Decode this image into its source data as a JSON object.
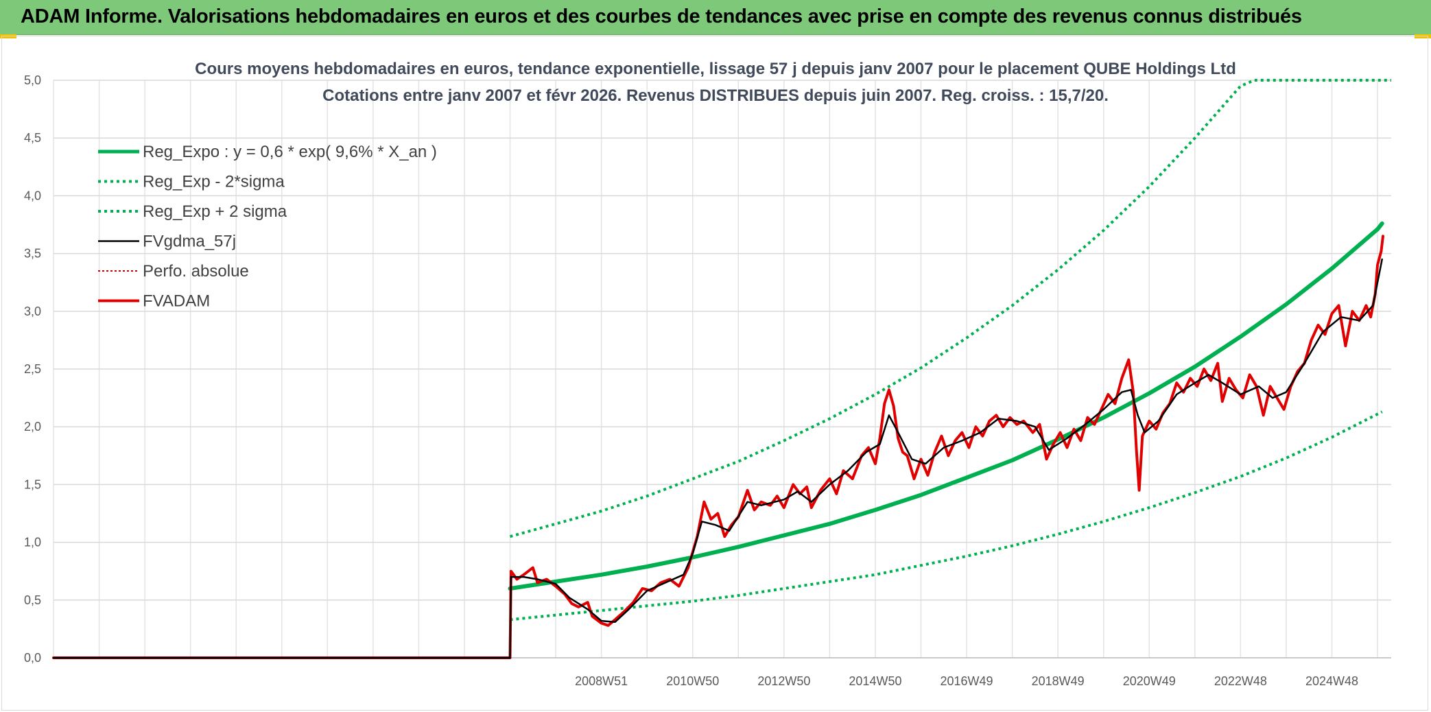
{
  "banner": {
    "title": "ADAM Informe. Valorisations hebdomadaires en euros et des courbes de tendances avec prise en compte des revenus connus distribués"
  },
  "chart_data": {
    "type": "line",
    "title_lines": [
      "Cours moyens hebdomadaires en euros, tendance exponentielle, lissage 57 j depuis janv 2007 pour le placement QUBE Holdings Ltd",
      "Cotations entre janv 2007 et févr 2026. Revenus DISTRIBUES depuis juin 2007. Reg. croiss. : 15,7/20."
    ],
    "ylim": [
      0,
      5
    ],
    "yticks": [
      "0,0",
      "0,5",
      "1,0",
      "1,5",
      "2,0",
      "2,5",
      "3,0",
      "3,5",
      "4,0",
      "4,5",
      "5,0"
    ],
    "xlim": [
      1997.0,
      2026.3
    ],
    "xticks": [
      {
        "label": "2008W51",
        "x": 2009.0
      },
      {
        "label": "2010W50",
        "x": 2011.0
      },
      {
        "label": "2012W50",
        "x": 2013.0
      },
      {
        "label": "2014W50",
        "x": 2015.0
      },
      {
        "label": "2016W49",
        "x": 2017.0
      },
      {
        "label": "2018W49",
        "x": 2019.0
      },
      {
        "label": "2020W49",
        "x": 2021.0
      },
      {
        "label": "2022W48",
        "x": 2023.0
      },
      {
        "label": "2024W48",
        "x": 2025.0
      }
    ],
    "grid": true,
    "legend_position": "top-left",
    "series": [
      {
        "name": "Reg_Expo : y = 0,6 * exp( 9,6% *  X_an )",
        "color": "#00b050",
        "style": "solid",
        "width": 6,
        "points": [
          [
            2007.0,
            0.6
          ],
          [
            2008.0,
            0.66
          ],
          [
            2009.0,
            0.72
          ],
          [
            2010.0,
            0.79
          ],
          [
            2011.0,
            0.87
          ],
          [
            2012.0,
            0.96
          ],
          [
            2013.0,
            1.06
          ],
          [
            2014.0,
            1.16
          ],
          [
            2015.0,
            1.28
          ],
          [
            2016.0,
            1.41
          ],
          [
            2017.0,
            1.56
          ],
          [
            2018.0,
            1.71
          ],
          [
            2019.0,
            1.89
          ],
          [
            2020.0,
            2.08
          ],
          [
            2021.0,
            2.29
          ],
          [
            2022.0,
            2.52
          ],
          [
            2023.0,
            2.78
          ],
          [
            2024.0,
            3.06
          ],
          [
            2025.0,
            3.37
          ],
          [
            2026.0,
            3.71
          ],
          [
            2026.1,
            3.76
          ]
        ]
      },
      {
        "name": "Reg_Exp - 2*sigma",
        "color": "#00b050",
        "style": "dotted",
        "width": 4,
        "points": [
          [
            2007.0,
            0.33
          ],
          [
            2008.0,
            0.37
          ],
          [
            2009.0,
            0.41
          ],
          [
            2010.0,
            0.45
          ],
          [
            2011.0,
            0.49
          ],
          [
            2012.0,
            0.54
          ],
          [
            2013.0,
            0.6
          ],
          [
            2014.0,
            0.66
          ],
          [
            2015.0,
            0.72
          ],
          [
            2016.0,
            0.8
          ],
          [
            2017.0,
            0.88
          ],
          [
            2018.0,
            0.97
          ],
          [
            2019.0,
            1.07
          ],
          [
            2020.0,
            1.18
          ],
          [
            2021.0,
            1.3
          ],
          [
            2022.0,
            1.43
          ],
          [
            2023.0,
            1.57
          ],
          [
            2024.0,
            1.73
          ],
          [
            2025.0,
            1.91
          ],
          [
            2026.1,
            2.13
          ]
        ]
      },
      {
        "name": "Reg_Exp + 2 sigma",
        "color": "#00b050",
        "style": "dotted",
        "width": 4,
        "points": [
          [
            2007.0,
            1.05
          ],
          [
            2008.0,
            1.16
          ],
          [
            2009.0,
            1.27
          ],
          [
            2010.0,
            1.4
          ],
          [
            2011.0,
            1.55
          ],
          [
            2012.0,
            1.7
          ],
          [
            2013.0,
            1.88
          ],
          [
            2014.0,
            2.07
          ],
          [
            2015.0,
            2.28
          ],
          [
            2016.0,
            2.51
          ],
          [
            2017.0,
            2.77
          ],
          [
            2018.0,
            3.05
          ],
          [
            2019.0,
            3.36
          ],
          [
            2020.0,
            3.7
          ],
          [
            2021.0,
            4.08
          ],
          [
            2022.0,
            4.5
          ],
          [
            2023.0,
            4.95
          ],
          [
            2023.3,
            5.0
          ],
          [
            2026.3,
            5.0
          ]
        ]
      },
      {
        "name": "FVgdma_57j",
        "color": "#000000",
        "style": "solid",
        "width": 2.5,
        "points": [
          [
            1997.0,
            0.0
          ],
          [
            2007.0,
            0.0
          ],
          [
            2007.02,
            0.7
          ],
          [
            2007.3,
            0.7
          ],
          [
            2007.6,
            0.68
          ],
          [
            2008.0,
            0.64
          ],
          [
            2008.3,
            0.52
          ],
          [
            2008.7,
            0.42
          ],
          [
            2009.0,
            0.32
          ],
          [
            2009.3,
            0.31
          ],
          [
            2009.6,
            0.42
          ],
          [
            2010.0,
            0.58
          ],
          [
            2010.4,
            0.65
          ],
          [
            2010.8,
            0.72
          ],
          [
            2011.0,
            0.9
          ],
          [
            2011.2,
            1.18
          ],
          [
            2011.5,
            1.15
          ],
          [
            2011.8,
            1.1
          ],
          [
            2012.2,
            1.35
          ],
          [
            2012.5,
            1.32
          ],
          [
            2013.0,
            1.37
          ],
          [
            2013.3,
            1.44
          ],
          [
            2013.6,
            1.35
          ],
          [
            2014.0,
            1.5
          ],
          [
            2014.4,
            1.62
          ],
          [
            2014.8,
            1.78
          ],
          [
            2015.1,
            1.85
          ],
          [
            2015.3,
            2.1
          ],
          [
            2015.5,
            1.95
          ],
          [
            2015.8,
            1.72
          ],
          [
            2016.1,
            1.68
          ],
          [
            2016.5,
            1.82
          ],
          [
            2016.9,
            1.88
          ],
          [
            2017.3,
            1.95
          ],
          [
            2017.7,
            2.07
          ],
          [
            2018.1,
            2.05
          ],
          [
            2018.5,
            2.0
          ],
          [
            2018.8,
            1.8
          ],
          [
            2019.2,
            1.9
          ],
          [
            2019.6,
            2.02
          ],
          [
            2020.0,
            2.15
          ],
          [
            2020.4,
            2.3
          ],
          [
            2020.6,
            2.32
          ],
          [
            2020.75,
            2.1
          ],
          [
            2020.9,
            1.95
          ],
          [
            2021.2,
            2.05
          ],
          [
            2021.6,
            2.28
          ],
          [
            2022.0,
            2.38
          ],
          [
            2022.3,
            2.45
          ],
          [
            2022.6,
            2.38
          ],
          [
            2023.0,
            2.28
          ],
          [
            2023.4,
            2.35
          ],
          [
            2023.7,
            2.25
          ],
          [
            2024.0,
            2.3
          ],
          [
            2024.4,
            2.55
          ],
          [
            2024.8,
            2.82
          ],
          [
            2025.2,
            2.95
          ],
          [
            2025.6,
            2.92
          ],
          [
            2025.9,
            3.05
          ],
          [
            2026.1,
            3.45
          ]
        ]
      },
      {
        "name": "Perfo. absolue",
        "color": "#c00000",
        "style": "dotted",
        "width": 2,
        "points": [
          [
            1997.0,
            0.0
          ],
          [
            2007.0,
            0.0
          ]
        ]
      },
      {
        "name": "FVADAM",
        "color": "#e00000",
        "style": "solid",
        "width": 4,
        "points": [
          [
            1997.0,
            0.0
          ],
          [
            2007.0,
            0.0
          ],
          [
            2007.02,
            0.75
          ],
          [
            2007.15,
            0.68
          ],
          [
            2007.3,
            0.72
          ],
          [
            2007.5,
            0.78
          ],
          [
            2007.6,
            0.65
          ],
          [
            2007.8,
            0.68
          ],
          [
            2008.0,
            0.62
          ],
          [
            2008.2,
            0.55
          ],
          [
            2008.35,
            0.47
          ],
          [
            2008.5,
            0.44
          ],
          [
            2008.7,
            0.48
          ],
          [
            2008.8,
            0.36
          ],
          [
            2009.0,
            0.3
          ],
          [
            2009.15,
            0.28
          ],
          [
            2009.3,
            0.33
          ],
          [
            2009.5,
            0.4
          ],
          [
            2009.7,
            0.48
          ],
          [
            2009.9,
            0.6
          ],
          [
            2010.1,
            0.58
          ],
          [
            2010.3,
            0.65
          ],
          [
            2010.5,
            0.68
          ],
          [
            2010.7,
            0.62
          ],
          [
            2010.9,
            0.78
          ],
          [
            2011.1,
            1.05
          ],
          [
            2011.25,
            1.35
          ],
          [
            2011.4,
            1.2
          ],
          [
            2011.55,
            1.25
          ],
          [
            2011.7,
            1.05
          ],
          [
            2011.85,
            1.15
          ],
          [
            2012.0,
            1.22
          ],
          [
            2012.2,
            1.45
          ],
          [
            2012.35,
            1.28
          ],
          [
            2012.5,
            1.35
          ],
          [
            2012.7,
            1.32
          ],
          [
            2012.85,
            1.4
          ],
          [
            2013.0,
            1.3
          ],
          [
            2013.2,
            1.5
          ],
          [
            2013.35,
            1.42
          ],
          [
            2013.5,
            1.48
          ],
          [
            2013.6,
            1.3
          ],
          [
            2013.8,
            1.45
          ],
          [
            2014.0,
            1.55
          ],
          [
            2014.15,
            1.42
          ],
          [
            2014.3,
            1.62
          ],
          [
            2014.5,
            1.55
          ],
          [
            2014.7,
            1.75
          ],
          [
            2014.85,
            1.82
          ],
          [
            2015.0,
            1.68
          ],
          [
            2015.1,
            1.9
          ],
          [
            2015.2,
            2.2
          ],
          [
            2015.3,
            2.32
          ],
          [
            2015.4,
            2.18
          ],
          [
            2015.5,
            1.9
          ],
          [
            2015.6,
            1.78
          ],
          [
            2015.7,
            1.75
          ],
          [
            2015.85,
            1.55
          ],
          [
            2016.0,
            1.72
          ],
          [
            2016.15,
            1.58
          ],
          [
            2016.3,
            1.78
          ],
          [
            2016.45,
            1.92
          ],
          [
            2016.6,
            1.75
          ],
          [
            2016.75,
            1.88
          ],
          [
            2016.9,
            1.95
          ],
          [
            2017.05,
            1.82
          ],
          [
            2017.2,
            2.0
          ],
          [
            2017.35,
            1.92
          ],
          [
            2017.5,
            2.05
          ],
          [
            2017.65,
            2.1
          ],
          [
            2017.8,
            2.0
          ],
          [
            2017.95,
            2.08
          ],
          [
            2018.1,
            2.02
          ],
          [
            2018.25,
            2.05
          ],
          [
            2018.45,
            1.95
          ],
          [
            2018.6,
            2.02
          ],
          [
            2018.75,
            1.72
          ],
          [
            2018.9,
            1.85
          ],
          [
            2019.05,
            1.95
          ],
          [
            2019.2,
            1.82
          ],
          [
            2019.35,
            1.98
          ],
          [
            2019.5,
            1.88
          ],
          [
            2019.65,
            2.08
          ],
          [
            2019.8,
            2.02
          ],
          [
            2019.95,
            2.15
          ],
          [
            2020.1,
            2.28
          ],
          [
            2020.25,
            2.2
          ],
          [
            2020.4,
            2.42
          ],
          [
            2020.55,
            2.58
          ],
          [
            2020.65,
            2.3
          ],
          [
            2020.72,
            1.8
          ],
          [
            2020.78,
            1.45
          ],
          [
            2020.85,
            1.92
          ],
          [
            2021.0,
            2.05
          ],
          [
            2021.15,
            1.98
          ],
          [
            2021.3,
            2.12
          ],
          [
            2021.45,
            2.2
          ],
          [
            2021.6,
            2.38
          ],
          [
            2021.75,
            2.3
          ],
          [
            2021.9,
            2.42
          ],
          [
            2022.05,
            2.35
          ],
          [
            2022.2,
            2.5
          ],
          [
            2022.35,
            2.4
          ],
          [
            2022.5,
            2.55
          ],
          [
            2022.6,
            2.22
          ],
          [
            2022.75,
            2.42
          ],
          [
            2022.9,
            2.32
          ],
          [
            2023.05,
            2.25
          ],
          [
            2023.2,
            2.45
          ],
          [
            2023.35,
            2.35
          ],
          [
            2023.5,
            2.1
          ],
          [
            2023.65,
            2.35
          ],
          [
            2023.8,
            2.25
          ],
          [
            2023.95,
            2.15
          ],
          [
            2024.1,
            2.35
          ],
          [
            2024.25,
            2.48
          ],
          [
            2024.4,
            2.55
          ],
          [
            2024.55,
            2.75
          ],
          [
            2024.7,
            2.88
          ],
          [
            2024.85,
            2.8
          ],
          [
            2025.0,
            2.98
          ],
          [
            2025.15,
            3.05
          ],
          [
            2025.3,
            2.7
          ],
          [
            2025.45,
            3.0
          ],
          [
            2025.6,
            2.92
          ],
          [
            2025.75,
            3.05
          ],
          [
            2025.85,
            2.95
          ],
          [
            2025.95,
            3.15
          ],
          [
            2026.0,
            3.4
          ],
          [
            2026.08,
            3.52
          ],
          [
            2026.12,
            3.65
          ]
        ]
      }
    ]
  }
}
